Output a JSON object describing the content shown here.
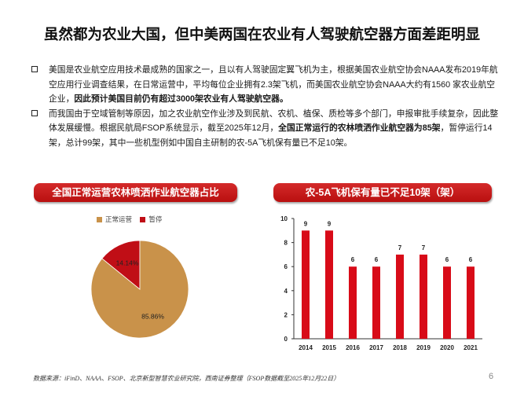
{
  "title": "虽然都为农业大国，但中美两国在农业有人驾驶航空器方面差距明显",
  "bullets": [
    {
      "text_normal": "美国是农业航空应用技术最成熟的国家之一，且以有人驾驶固定翼飞机为主，根据美国农业航空协会NAAA发布2019年航空应用行业调查结果，在日常运营中，平均每位企业拥有2.3架飞机，而美国农业航空协会NAAA大约有1560 家农业航空企业，",
      "text_bold": "因此预计美国目前仍有超过3000架农业有人驾驶航空器。",
      "text_after": ""
    },
    {
      "text_normal": "而我国由于空域管制等原因，加之农业航空作业涉及到民航、农机、植保、质检等多个部门，申报审批手续复杂，因此整体发展缓慢。根据民航局FSOP系统显示，截至2025年12月，",
      "text_bold": "全国正常运行的农林喷洒作业航空器为85架",
      "text_after": "，暂停运行14架，总计99架，其中一些机型例如中国自主研制的农-5A飞机保有量已不足10架。"
    }
  ],
  "pie_panel": {
    "title": "全国正常运营农林喷洒作业航空器占比",
    "legend": [
      {
        "label": "正常运营",
        "color": "#c9924a"
      },
      {
        "label": "暂停",
        "color": "#c00e16"
      }
    ]
  },
  "bar_panel": {
    "title": "农-5A飞机保有量已不足10架（架）"
  },
  "chart_data": [
    {
      "type": "pie",
      "title": "全国正常运营农林喷洒作业航空器占比",
      "labels": [
        "正常运营",
        "暂停"
      ],
      "values": [
        85.86,
        14.14
      ],
      "value_labels": [
        "85.86%",
        "14.14%"
      ],
      "colors": [
        "#c9924a",
        "#c00e16"
      ],
      "legend": "top-left"
    },
    {
      "type": "bar",
      "title": "农-5A飞机保有量已不足10架（架）",
      "categories": [
        "2014",
        "2015",
        "2016",
        "2017",
        "2018",
        "2019",
        "2020",
        "2021"
      ],
      "values": [
        9,
        9,
        6,
        6,
        7,
        7,
        6,
        6
      ],
      "ylim": [
        0,
        10
      ],
      "yticks": [
        "0",
        "2",
        "4",
        "6",
        "8",
        "10"
      ],
      "color": "#d80b18",
      "grid": false
    }
  ],
  "footer": "数据来源：iFinD、NAAA、FSOP、北京新型智慧农业研究院，西南证券整理（FSOP数据截至2025年12月22日）",
  "page_number": "6"
}
